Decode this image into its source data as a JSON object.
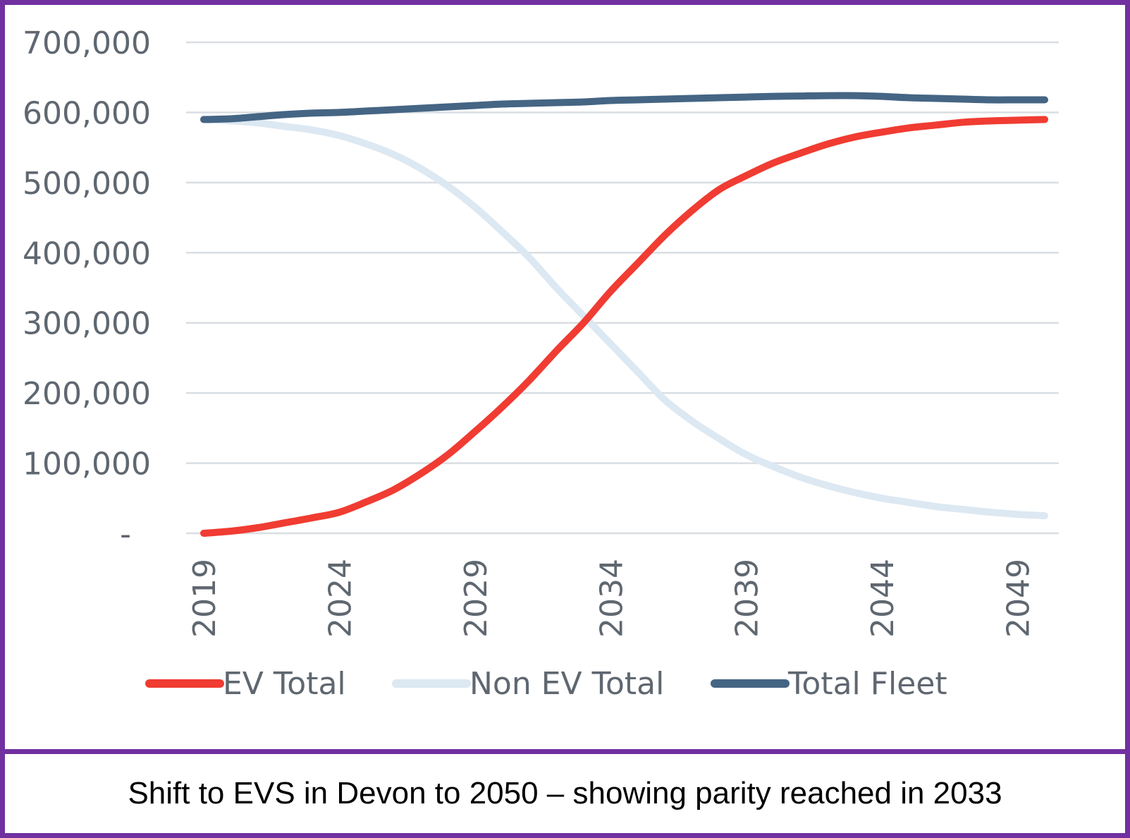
{
  "caption": "Shift to EVS in Devon to 2050 – showing parity reached in 2033",
  "chart_data": {
    "type": "line",
    "title": "",
    "xlabel": "",
    "ylabel": "",
    "xlim": [
      2019,
      2050
    ],
    "ylim": [
      0,
      700000
    ],
    "grid": true,
    "legend_position": "bottom",
    "x_ticks": [
      "2019",
      "2024",
      "2029",
      "2034",
      "2039",
      "2044",
      "2049"
    ],
    "y_ticks": [
      {
        "value": 0,
        "label": "-"
      },
      {
        "value": 100000,
        "label": "100,000"
      },
      {
        "value": 200000,
        "label": "200,000"
      },
      {
        "value": 300000,
        "label": "300,000"
      },
      {
        "value": 400000,
        "label": "400,000"
      },
      {
        "value": 500000,
        "label": "500,000"
      },
      {
        "value": 600000,
        "label": "600,000"
      },
      {
        "value": 700000,
        "label": "700,000"
      }
    ],
    "x": [
      2019,
      2020,
      2021,
      2022,
      2023,
      2024,
      2025,
      2026,
      2027,
      2028,
      2029,
      2030,
      2031,
      2032,
      2033,
      2034,
      2035,
      2036,
      2037,
      2038,
      2039,
      2040,
      2041,
      2042,
      2043,
      2044,
      2045,
      2046,
      2047,
      2048,
      2049,
      2050
    ],
    "series": [
      {
        "name": "EV Total",
        "color": "#f03c32",
        "values": [
          0,
          3000,
          8000,
          15000,
          22000,
          30000,
          45000,
          62000,
          85000,
          112000,
          145000,
          180000,
          218000,
          260000,
          300000,
          345000,
          385000,
          425000,
          460000,
          490000,
          510000,
          528000,
          542000,
          555000,
          565000,
          572000,
          578000,
          582000,
          586000,
          588000,
          589000,
          590000
        ]
      },
      {
        "name": "Non EV Total",
        "color": "#dce8f2",
        "values": [
          590000,
          588000,
          585000,
          580000,
          575000,
          567000,
          555000,
          540000,
          520000,
          495000,
          465000,
          430000,
          393000,
          350000,
          310000,
          270000,
          230000,
          190000,
          160000,
          135000,
          112000,
          95000,
          80000,
          68000,
          58000,
          50000,
          44000,
          38000,
          34000,
          30000,
          27000,
          25000
        ]
      },
      {
        "name": "Total Fleet",
        "color": "#456584",
        "values": [
          590000,
          591000,
          594000,
          597000,
          599000,
          600000,
          602000,
          604000,
          606000,
          608000,
          610000,
          612000,
          613000,
          614000,
          615000,
          617000,
          618000,
          619000,
          620000,
          621000,
          622000,
          623000,
          623500,
          624000,
          624000,
          623000,
          621000,
          620000,
          619000,
          618000,
          618000,
          618000
        ]
      }
    ]
  }
}
